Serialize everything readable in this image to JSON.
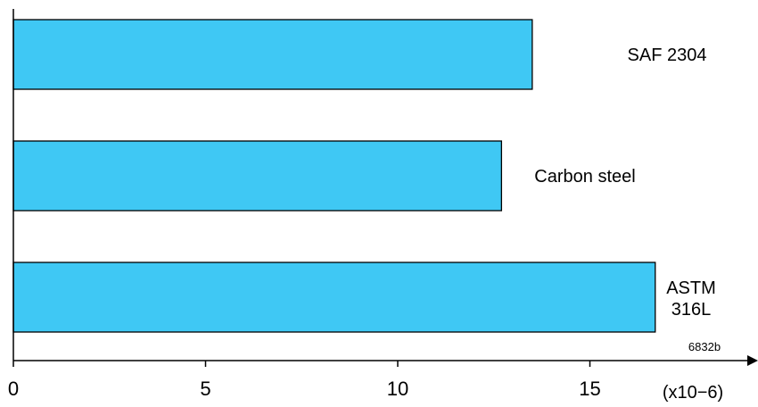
{
  "chart_data": {
    "type": "bar",
    "orientation": "horizontal",
    "categories": [
      "SAF 2304",
      "Carbon steel",
      "ASTM 316L"
    ],
    "values": [
      13.5,
      12.7,
      16.7
    ],
    "x_ticks": [
      0,
      5,
      10,
      15
    ],
    "xlim": [
      0,
      19
    ],
    "x_unit_label": "(x10−6)",
    "note": "6832b",
    "bar_color": "#3fc8f4",
    "grid": false,
    "legend": "none"
  }
}
